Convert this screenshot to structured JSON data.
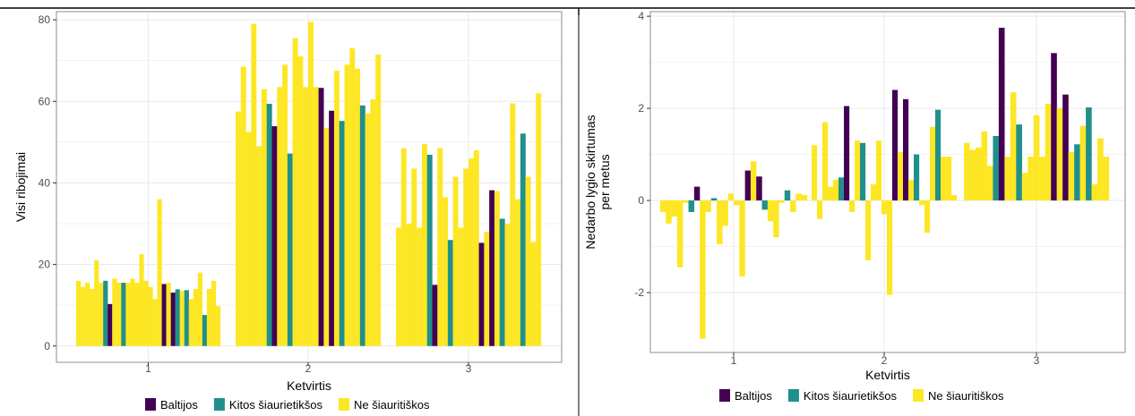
{
  "colors": {
    "Baltijos": "#440154",
    "Kitos šiaurietikšos": "#21908c",
    "Ne šiauritiškos": "#fde725",
    "grid": "#ebebeb",
    "panel_border": "#8c8c8c",
    "table_border": "#000000"
  },
  "chart_data": [
    {
      "type": "bar",
      "xlabel": "Ketvirtis",
      "ylabel": "Visi ribojimai",
      "ylim": [
        -4,
        82
      ],
      "yticks": [
        "0",
        "20",
        "40",
        "60",
        "80"
      ],
      "ytick_values": [
        0,
        20,
        40,
        60,
        80
      ],
      "categories": [
        "1",
        "2",
        "3"
      ],
      "legend_position": "bottom",
      "groups": [
        {
          "category": "1",
          "bars": [
            {
              "series": "Ne šiauritiškos",
              "value": 16
            },
            {
              "series": "Ne šiauritiškos",
              "value": 14.5
            },
            {
              "series": "Ne šiauritiškos",
              "value": 15.5
            },
            {
              "series": "Ne šiauritiškos",
              "value": 14
            },
            {
              "series": "Ne šiauritiškos",
              "value": 21
            },
            {
              "series": "Ne šiauritiškos",
              "value": 15.5
            },
            {
              "series": "Kitos šiaurietikšos",
              "value": 16
            },
            {
              "series": "Baltijos",
              "value": 10.3
            },
            {
              "series": "Ne šiauritiškos",
              "value": 16.5
            },
            {
              "series": "Ne šiauritiškos",
              "value": 15.5
            },
            {
              "series": "Kitos šiaurietikšos",
              "value": 15.5
            },
            {
              "series": "Ne šiauritiškos",
              "value": 15.5
            },
            {
              "series": "Ne šiauritiškos",
              "value": 16.5
            },
            {
              "series": "Ne šiauritiškos",
              "value": 15.5
            },
            {
              "series": "Ne šiauritiškos",
              "value": 22.5
            },
            {
              "series": "Ne šiauritiškos",
              "value": 16
            },
            {
              "series": "Ne šiauritiškos",
              "value": 14.5
            },
            {
              "series": "Ne šiauritiškos",
              "value": 11.5
            },
            {
              "series": "Ne šiauritiškos",
              "value": 36
            },
            {
              "series": "Baltijos",
              "value": 15.2
            },
            {
              "series": "Ne šiauritiškos",
              "value": 15.5
            },
            {
              "series": "Baltijos",
              "value": 13.1
            },
            {
              "series": "Kitos šiaurietikšos",
              "value": 13.9
            },
            {
              "series": "Ne šiauritiškos",
              "value": 13.5
            },
            {
              "series": "Kitos šiaurietikšos",
              "value": 13.7
            },
            {
              "series": "Ne šiauritiškos",
              "value": 11.5
            },
            {
              "series": "Ne šiauritiškos",
              "value": 14
            },
            {
              "series": "Ne šiauritiškos",
              "value": 18
            },
            {
              "series": "Kitos šiaurietikšos",
              "value": 7.6
            },
            {
              "series": "Ne šiauritiškos",
              "value": 14
            },
            {
              "series": "Ne šiauritiškos",
              "value": 16
            },
            {
              "series": "Ne šiauritiškos",
              "value": 9.8
            }
          ]
        },
        {
          "category": "2",
          "bars": [
            {
              "series": "Ne šiauritiškos",
              "value": 57.5
            },
            {
              "series": "Ne šiauritiškos",
              "value": 68.5
            },
            {
              "series": "Ne šiauritiškos",
              "value": 52.5
            },
            {
              "series": "Ne šiauritiškos",
              "value": 79
            },
            {
              "series": "Ne šiauritiškos",
              "value": 49
            },
            {
              "series": "Ne šiauritiškos",
              "value": 63
            },
            {
              "series": "Kitos šiaurietikšos",
              "value": 59.4
            },
            {
              "series": "Baltijos",
              "value": 53.9
            },
            {
              "series": "Ne šiauritiškos",
              "value": 63.5
            },
            {
              "series": "Ne šiauritiškos",
              "value": 69
            },
            {
              "series": "Kitos šiaurietikšos",
              "value": 47.2
            },
            {
              "series": "Ne šiauritiškos",
              "value": 75.5
            },
            {
              "series": "Ne šiauritiškos",
              "value": 71
            },
            {
              "series": "Ne šiauritiškos",
              "value": 63.5
            },
            {
              "series": "Ne šiauritiškos",
              "value": 79.5
            },
            {
              "series": "Ne šiauritiškos",
              "value": 63.5
            },
            {
              "series": "Baltijos",
              "value": 63.3
            },
            {
              "series": "Ne šiauritiškos",
              "value": 53.5
            },
            {
              "series": "Baltijos",
              "value": 57.7
            },
            {
              "series": "Ne šiauritiškos",
              "value": 67.5
            },
            {
              "series": "Kitos šiaurietikšos",
              "value": 55.2
            },
            {
              "series": "Ne šiauritiškos",
              "value": 69
            },
            {
              "series": "Ne šiauritiškos",
              "value": 73
            },
            {
              "series": "Ne šiauritiškos",
              "value": 68
            },
            {
              "series": "Kitos šiaurietikšos",
              "value": 59
            },
            {
              "series": "Ne šiauritiškos",
              "value": 57
            },
            {
              "series": "Ne šiauritiškos",
              "value": 60.5
            },
            {
              "series": "Ne šiauritiškos",
              "value": 71.5
            }
          ]
        },
        {
          "category": "3",
          "bars": [
            {
              "series": "Ne šiauritiškos",
              "value": 29
            },
            {
              "series": "Ne šiauritiškos",
              "value": 48.5
            },
            {
              "series": "Ne šiauritiškos",
              "value": 30
            },
            {
              "series": "Ne šiauritiškos",
              "value": 43.5
            },
            {
              "series": "Ne šiauritiškos",
              "value": 29
            },
            {
              "series": "Ne šiauritiškos",
              "value": 49.5
            },
            {
              "series": "Kitos šiaurietikšos",
              "value": 46.9
            },
            {
              "series": "Baltijos",
              "value": 15
            },
            {
              "series": "Ne šiauritiškos",
              "value": 48.5
            },
            {
              "series": "Ne šiauritiškos",
              "value": 36.5
            },
            {
              "series": "Kitos šiaurietikšos",
              "value": 26
            },
            {
              "series": "Ne šiauritiškos",
              "value": 41.5
            },
            {
              "series": "Ne šiauritiškos",
              "value": 29
            },
            {
              "series": "Ne šiauritiškos",
              "value": 43.5
            },
            {
              "series": "Ne šiauritiškos",
              "value": 46
            },
            {
              "series": "Ne šiauritiškos",
              "value": 48
            },
            {
              "series": "Baltijos",
              "value": 25.3
            },
            {
              "series": "Ne šiauritiškos",
              "value": 28
            },
            {
              "series": "Baltijos",
              "value": 38.2
            },
            {
              "series": "Ne šiauritiškos",
              "value": 38
            },
            {
              "series": "Kitos šiaurietikšos",
              "value": 31.2
            },
            {
              "series": "Ne šiauritiškos",
              "value": 30
            },
            {
              "series": "Ne šiauritiškos",
              "value": 59.5
            },
            {
              "series": "Ne šiauritiškos",
              "value": 36
            },
            {
              "series": "Kitos šiaurietikšos",
              "value": 52.1
            },
            {
              "series": "Ne šiauritiškos",
              "value": 41.5
            },
            {
              "series": "Ne šiauritiškos",
              "value": 25.5
            },
            {
              "series": "Ne šiauritiškos",
              "value": 62
            }
          ]
        }
      ]
    },
    {
      "type": "bar",
      "xlabel": "Ketvirtis",
      "ylabel": "Nedarbo lygio skirtumas\nper metus",
      "ylim": [
        -3.3,
        4.1
      ],
      "yticks": [
        "-2",
        "0",
        "2",
        "4"
      ],
      "ytick_values": [
        -2,
        0,
        2,
        4
      ],
      "categories": [
        "1",
        "2",
        "3"
      ],
      "legend_position": "bottom",
      "groups": [
        {
          "category": "1",
          "bars": [
            {
              "series": "Ne šiauritiškos",
              "value": -0.25
            },
            {
              "series": "Ne šiauritiškos",
              "value": -0.5
            },
            {
              "series": "Ne šiauritiškos",
              "value": -0.35
            },
            {
              "series": "Ne šiauritiškos",
              "value": -1.45
            },
            {
              "series": "Ne šiauritiškos",
              "value": -0.05
            },
            {
              "series": "Kitos šiaurietikšos",
              "value": -0.25
            },
            {
              "series": "Baltijos",
              "value": 0.3
            },
            {
              "series": "Ne šiauritiškos",
              "value": -3
            },
            {
              "series": "Ne šiauritiškos",
              "value": -0.25
            },
            {
              "series": "Kitos šiaurietikšos",
              "value": 0.05
            },
            {
              "series": "Ne šiauritiškos",
              "value": -0.95
            },
            {
              "series": "Ne šiauritiškos",
              "value": -0.55
            },
            {
              "series": "Ne šiauritiškos",
              "value": 0.15
            },
            {
              "series": "Ne šiauritiškos",
              "value": -0.1
            },
            {
              "series": "Ne šiauritiškos",
              "value": -1.65
            },
            {
              "series": "Baltijos",
              "value": 0.65
            },
            {
              "series": "Ne šiauritiškos",
              "value": 0.85
            },
            {
              "series": "Baltijos",
              "value": 0.52
            },
            {
              "series": "Kitos šiaurietikšos",
              "value": -0.2
            },
            {
              "series": "Ne šiauritiškos",
              "value": -0.45
            },
            {
              "series": "Ne šiauritiškos",
              "value": -0.8
            },
            {
              "series": "Ne šiauritiškos",
              "value": -0.05
            },
            {
              "series": "Kitos šiaurietikšos",
              "value": 0.22
            },
            {
              "series": "Ne šiauritiškos",
              "value": -0.25
            },
            {
              "series": "Ne šiauritiškos",
              "value": 0.15
            },
            {
              "series": "Ne šiauritiškos",
              "value": 0.12
            }
          ]
        },
        {
          "category": "2",
          "bars": [
            {
              "series": "Ne šiauritiškos",
              "value": 1.2
            },
            {
              "series": "Ne šiauritiškos",
              "value": -0.4
            },
            {
              "series": "Ne šiauritiškos",
              "value": 1.7
            },
            {
              "series": "Ne šiauritiškos",
              "value": 0.3
            },
            {
              "series": "Ne šiauritiškos",
              "value": 0.45
            },
            {
              "series": "Kitos šiaurietikšos",
              "value": 0.5
            },
            {
              "series": "Baltijos",
              "value": 2.05
            },
            {
              "series": "Ne šiauritiškos",
              "value": -0.25
            },
            {
              "series": "Ne šiauritiškos",
              "value": 1.3
            },
            {
              "series": "Kitos šiaurietikšos",
              "value": 1.25
            },
            {
              "series": "Ne šiauritiškos",
              "value": -1.3
            },
            {
              "series": "Ne šiauritiškos",
              "value": 0.35
            },
            {
              "series": "Ne šiauritiškos",
              "value": 1.3
            },
            {
              "series": "Ne šiauritiškos",
              "value": -0.3
            },
            {
              "series": "Ne šiauritiškos",
              "value": -2.05
            },
            {
              "series": "Baltijos",
              "value": 2.4
            },
            {
              "series": "Ne šiauritiškos",
              "value": 1.05
            },
            {
              "series": "Baltijos",
              "value": 2.2
            },
            {
              "series": "Ne šiauritiškos",
              "value": 0.45
            },
            {
              "series": "Kitos šiaurietikšos",
              "value": 1.0
            },
            {
              "series": "Ne šiauritiškos",
              "value": -0.1
            },
            {
              "series": "Ne šiauritiškos",
              "value": -0.7
            },
            {
              "series": "Ne šiauritiškos",
              "value": 1.6
            },
            {
              "series": "Kitos šiaurietikšos",
              "value": 1.97
            },
            {
              "series": "Ne šiauritiškos",
              "value": 0.95
            },
            {
              "series": "Ne šiauritiškos",
              "value": 0.95
            },
            {
              "series": "Ne šiauritiškos",
              "value": 0.12
            }
          ]
        },
        {
          "category": "3",
          "bars": [
            {
              "series": "Ne šiauritiškos",
              "value": 1.25
            },
            {
              "series": "Ne šiauritiškos",
              "value": 1.1
            },
            {
              "series": "Ne šiauritiškos",
              "value": 1.15
            },
            {
              "series": "Ne šiauritiškos",
              "value": 1.5
            },
            {
              "series": "Ne šiauritiškos",
              "value": 0.75
            },
            {
              "series": "Kitos šiaurietikšos",
              "value": 1.4
            },
            {
              "series": "Baltijos",
              "value": 3.75
            },
            {
              "series": "Ne šiauritiškos",
              "value": 0.95
            },
            {
              "series": "Ne šiauritiškos",
              "value": 2.35
            },
            {
              "series": "Kitos šiaurietikšos",
              "value": 1.65
            },
            {
              "series": "Ne šiauritiškos",
              "value": 0.6
            },
            {
              "series": "Ne šiauritiškos",
              "value": 0.95
            },
            {
              "series": "Ne šiauritiškos",
              "value": 1.85
            },
            {
              "series": "Ne šiauritiškos",
              "value": 0.95
            },
            {
              "series": "Ne šiauritiškos",
              "value": 2.1
            },
            {
              "series": "Baltijos",
              "value": 3.2
            },
            {
              "series": "Ne šiauritiškos",
              "value": 2.0
            },
            {
              "series": "Baltijos",
              "value": 2.3
            },
            {
              "series": "Ne šiauritiškos",
              "value": 1.05
            },
            {
              "series": "Kitos šiaurietikšos",
              "value": 1.22
            },
            {
              "series": "Ne šiauritiškos",
              "value": 1.62
            },
            {
              "series": "Kitos šiaurietikšos",
              "value": 2.02
            },
            {
              "series": "Ne šiauritiškos",
              "value": 0.35
            },
            {
              "series": "Ne šiauritiškos",
              "value": 1.35
            },
            {
              "series": "Ne šiauritiškos",
              "value": 0.95
            }
          ]
        }
      ]
    }
  ],
  "legend": {
    "items": [
      {
        "label": "Baltijos",
        "series": "Baltijos"
      },
      {
        "label": "Kitos šiaurietikšos",
        "series": "Kitos šiaurietikšos"
      },
      {
        "label": "Ne šiauritiškos",
        "series": "Ne šiauritiškos"
      }
    ]
  }
}
